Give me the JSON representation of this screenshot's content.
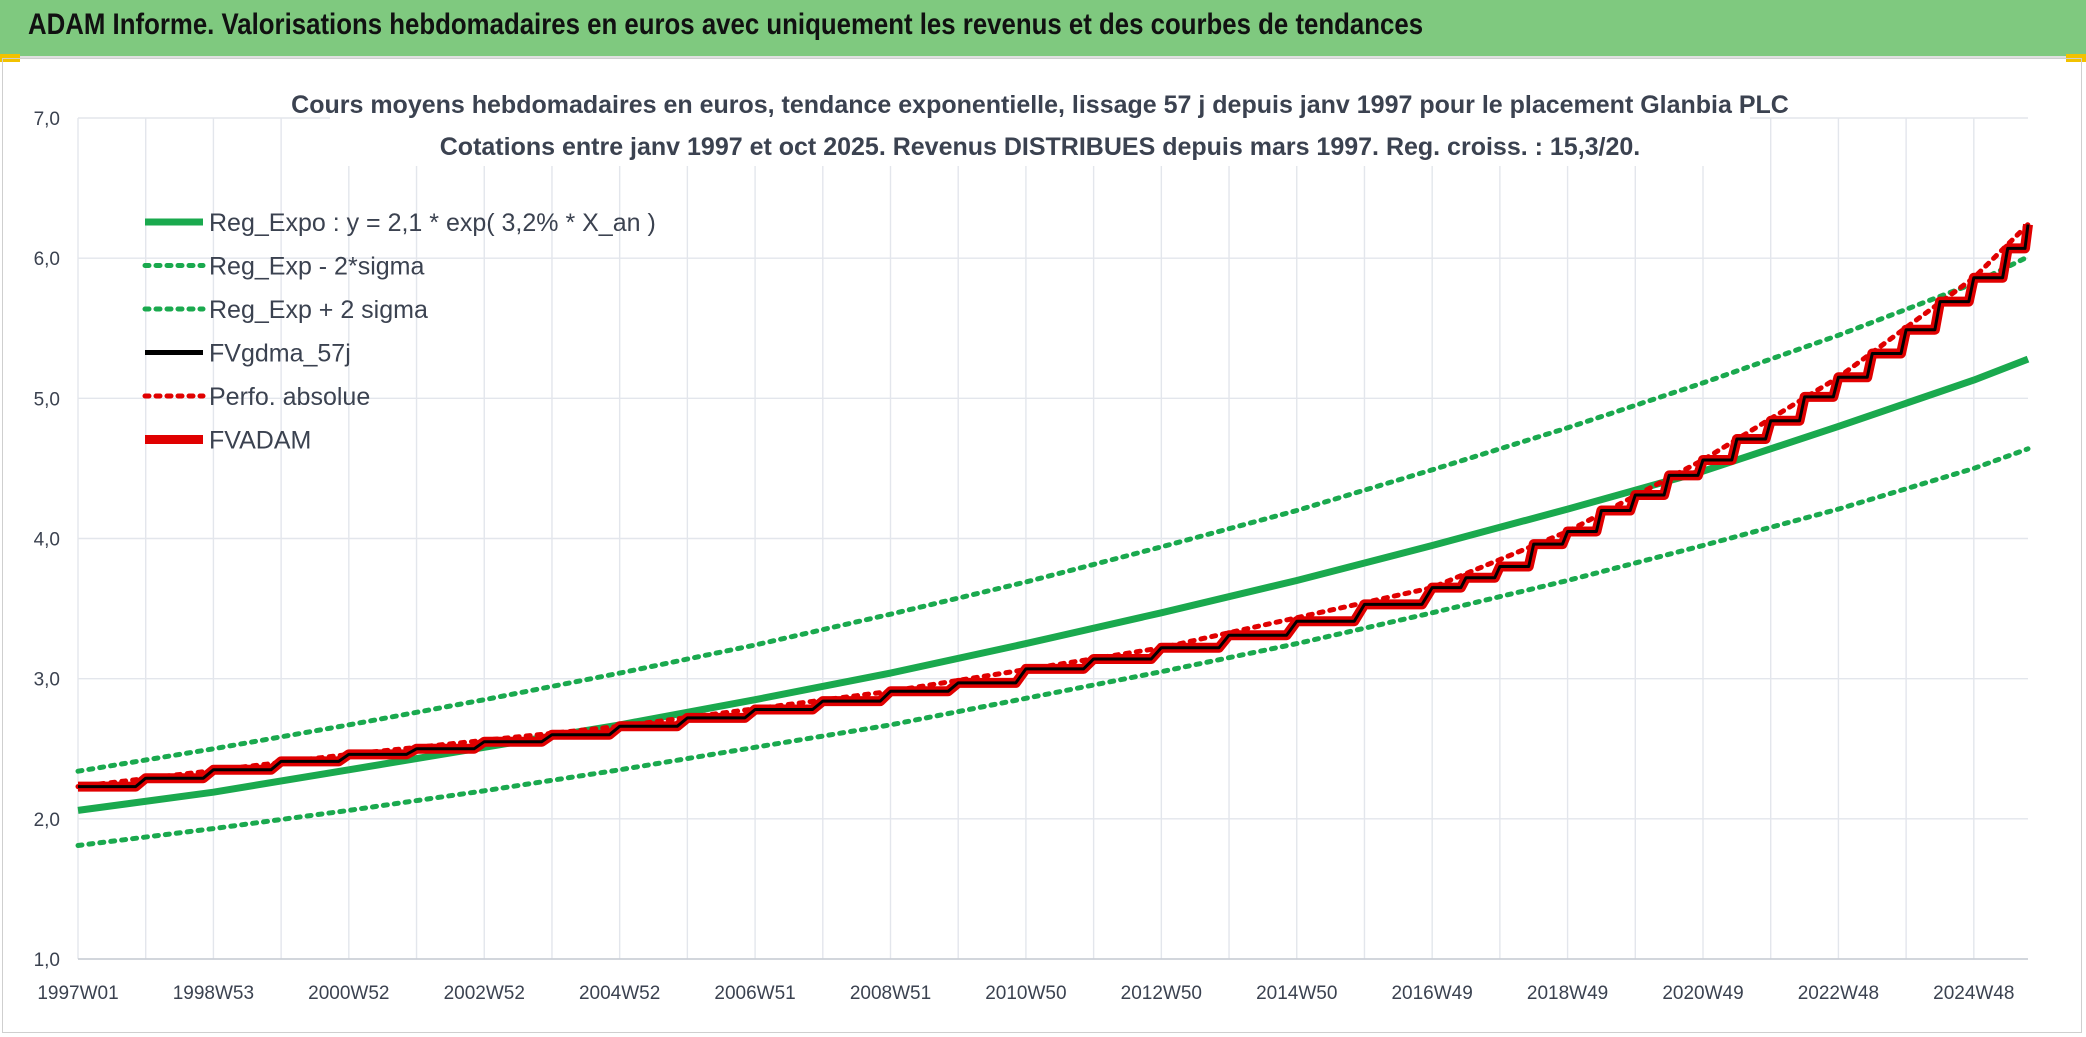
{
  "header": {
    "title": "ADAM Informe. Valorisations hebdomadaires en euros avec uniquement les revenus et des courbes de tendances"
  },
  "chart_data": {
    "type": "line",
    "title": "Cours moyens hebdomadaires en euros, tendance exponentielle, lissage 57 j depuis janv 1997 pour le placement Glanbia PLC",
    "subtitle": "Cotations entre janv 1997 et oct 2025. Revenus DISTRIBUES depuis mars 1997. Reg. croiss. : 15,3/20.",
    "xlabel": "",
    "ylabel": "",
    "ylim": [
      1.0,
      7.0
    ],
    "xlim": [
      1997.0,
      2025.8
    ],
    "y_ticks": [
      "1,0",
      "2,0",
      "3,0",
      "4,0",
      "5,0",
      "6,0",
      "7,0"
    ],
    "x_ticks": [
      {
        "label": "1997W01",
        "x": 1997.0
      },
      {
        "label": "1998W53",
        "x": 1999.0
      },
      {
        "label": "2000W52",
        "x": 2001.0
      },
      {
        "label": "2002W52",
        "x": 2003.0
      },
      {
        "label": "2004W52",
        "x": 2005.0
      },
      {
        "label": "2006W51",
        "x": 2007.0
      },
      {
        "label": "2008W51",
        "x": 2009.0
      },
      {
        "label": "2010W50",
        "x": 2011.0
      },
      {
        "label": "2012W50",
        "x": 2013.0
      },
      {
        "label": "2014W50",
        "x": 2015.0
      },
      {
        "label": "2016W49",
        "x": 2017.0
      },
      {
        "label": "2018W49",
        "x": 2019.0
      },
      {
        "label": "2020W49",
        "x": 2021.0
      },
      {
        "label": "2022W48",
        "x": 2023.0
      },
      {
        "label": "2024W48",
        "x": 2025.0
      }
    ],
    "grid": true,
    "legend_position": "top-left",
    "series": [
      {
        "name": "Reg_Expo : y = 2,1 * exp( 3,2% *  X_an )",
        "color": "#1aa94e",
        "style": "solid",
        "x": [
          1997.0,
          1999.0,
          2001.0,
          2003.0,
          2005.0,
          2007.0,
          2009.0,
          2011.0,
          2013.0,
          2015.0,
          2017.0,
          2019.0,
          2021.0,
          2023.0,
          2025.0,
          2025.8
        ],
        "y": [
          2.06,
          2.19,
          2.35,
          2.51,
          2.67,
          2.85,
          3.04,
          3.25,
          3.47,
          3.7,
          3.95,
          4.21,
          4.48,
          4.8,
          5.13,
          5.28
        ]
      },
      {
        "name": "Reg_Exp - 2*sigma",
        "color": "#1aa94e",
        "style": "dotted",
        "x": [
          1997.0,
          1999.0,
          2001.0,
          2003.0,
          2005.0,
          2007.0,
          2009.0,
          2011.0,
          2013.0,
          2015.0,
          2017.0,
          2019.0,
          2021.0,
          2023.0,
          2025.0,
          2025.8
        ],
        "y": [
          1.81,
          1.93,
          2.06,
          2.2,
          2.35,
          2.51,
          2.67,
          2.86,
          3.05,
          3.25,
          3.47,
          3.7,
          3.95,
          4.21,
          4.5,
          4.64
        ]
      },
      {
        "name": "Reg_Exp + 2 sigma",
        "color": "#1aa94e",
        "style": "dotted",
        "x": [
          1997.0,
          1999.0,
          2001.0,
          2003.0,
          2005.0,
          2007.0,
          2009.0,
          2011.0,
          2013.0,
          2015.0,
          2017.0,
          2019.0,
          2021.0,
          2023.0,
          2025.0,
          2025.8
        ],
        "y": [
          2.34,
          2.5,
          2.67,
          2.85,
          3.04,
          3.24,
          3.46,
          3.69,
          3.94,
          4.2,
          4.49,
          4.79,
          5.11,
          5.45,
          5.82,
          6.01
        ]
      },
      {
        "name": "FVgdma_57j",
        "color": "#000000",
        "style": "solid",
        "x": [
          1997.0,
          1998.0,
          1999.0,
          2000.0,
          2001.0,
          2002.0,
          2003.0,
          2004.0,
          2005.0,
          2006.0,
          2007.0,
          2008.0,
          2009.0,
          2010.0,
          2011.0,
          2012.0,
          2013.0,
          2014.0,
          2015.0,
          2016.0,
          2017.0,
          2017.5,
          2018.0,
          2018.5,
          2019.0,
          2019.5,
          2020.0,
          2020.5,
          2021.0,
          2021.5,
          2022.0,
          2022.5,
          2023.0,
          2023.5,
          2024.0,
          2024.5,
          2025.0,
          2025.5,
          2025.8
        ],
        "y": [
          2.23,
          2.29,
          2.35,
          2.41,
          2.46,
          2.5,
          2.55,
          2.6,
          2.66,
          2.72,
          2.78,
          2.84,
          2.91,
          2.97,
          3.07,
          3.14,
          3.22,
          3.31,
          3.41,
          3.53,
          3.65,
          3.72,
          3.8,
          3.96,
          4.05,
          4.2,
          4.31,
          4.45,
          4.56,
          4.71,
          4.84,
          5.01,
          5.15,
          5.32,
          5.49,
          5.69,
          5.86,
          6.07,
          6.24
        ]
      },
      {
        "name": "Perfo. absolue",
        "color": "#e00000",
        "style": "dotted",
        "x": [
          1997.0,
          2001.0,
          2005.0,
          2009.0,
          2013.0,
          2017.0,
          2019.0,
          2021.0,
          2023.0,
          2025.0,
          2025.8
        ],
        "y": [
          2.23,
          2.46,
          2.66,
          2.91,
          3.22,
          3.65,
          4.05,
          4.56,
          5.15,
          5.86,
          6.24
        ]
      },
      {
        "name": "FVADAM",
        "color": "#e00000",
        "style": "thick",
        "x": [
          1997.0,
          1998.0,
          1999.0,
          2000.0,
          2001.0,
          2002.0,
          2003.0,
          2004.0,
          2005.0,
          2006.0,
          2007.0,
          2008.0,
          2009.0,
          2010.0,
          2011.0,
          2012.0,
          2013.0,
          2014.0,
          2015.0,
          2016.0,
          2017.0,
          2017.5,
          2018.0,
          2018.5,
          2019.0,
          2019.5,
          2020.0,
          2020.5,
          2021.0,
          2021.5,
          2022.0,
          2022.5,
          2023.0,
          2023.5,
          2024.0,
          2024.5,
          2025.0,
          2025.5,
          2025.8
        ],
        "y": [
          2.23,
          2.29,
          2.35,
          2.41,
          2.46,
          2.5,
          2.55,
          2.6,
          2.66,
          2.72,
          2.78,
          2.84,
          2.91,
          2.97,
          3.07,
          3.14,
          3.22,
          3.31,
          3.41,
          3.53,
          3.65,
          3.72,
          3.8,
          3.96,
          4.05,
          4.2,
          4.31,
          4.45,
          4.56,
          4.71,
          4.84,
          5.01,
          5.15,
          5.32,
          5.49,
          5.69,
          5.86,
          6.07,
          6.24
        ]
      }
    ]
  }
}
